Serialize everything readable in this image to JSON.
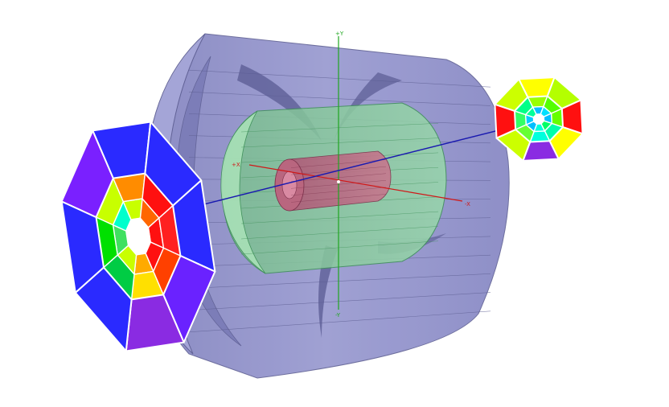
{
  "axes": {
    "y_top_label": "+Y",
    "y_bottom_label": "-Y",
    "x_left_label": "+X",
    "x_right_label": "-X",
    "z_right_label": "+Z",
    "z_left_label": "-Z"
  },
  "colors": {
    "outer_shell": "#8e8fc9",
    "outer_shell_edge": "#5f6094",
    "middle_shell": "#8fd1a2",
    "middle_shell_edge": "#3d8f57",
    "inner_core": "#c06b86",
    "inner_core_edge": "#7a2f49",
    "axis_x": "#d01818",
    "axis_y": "#1fa61f",
    "axis_z": "#1a1ab0",
    "endcap_rings": [
      "#f5f5f5",
      "#ff1010",
      "#ffcc00",
      "#c8ff00",
      "#1e90ff",
      "#2828ff"
    ]
  },
  "endcap_left": {
    "ring_colors": [
      [
        "#ff1010",
        "#ff1010",
        "#ffaa00",
        "#c8ff00",
        "#40e060",
        "#00ffcc",
        "#c8ff00",
        "#ff6600"
      ],
      [
        "#ff2020",
        "#ff4000",
        "#ffe000",
        "#00cc44",
        "#00e000",
        "#c8ff00",
        "#ff8c00",
        "#ff1010"
      ],
      [
        "#2a2aff",
        "#6a22ff",
        "#8a2be2",
        "#2a2aff",
        "#2a2aff",
        "#7a20ff",
        "#2a2aff",
        "#2a2aff"
      ]
    ]
  },
  "endcap_right": {
    "ring_colors": [
      [
        "#00bfff",
        "#00ff66",
        "#00ffdd",
        "#00bfff",
        "#00ccff",
        "#00ff99",
        "#00bfff",
        "#00e0ff"
      ],
      [
        "#66ff00",
        "#00ffaa",
        "#00ffdd",
        "#66ff33",
        "#33ff66",
        "#00ff88",
        "#99ff00",
        "#55ff00"
      ],
      [
        "#ff1010",
        "#ffff00",
        "#8a2be2",
        "#ccff00",
        "#ff1010",
        "#ccff00",
        "#ffff00",
        "#b4ff00"
      ]
    ]
  }
}
